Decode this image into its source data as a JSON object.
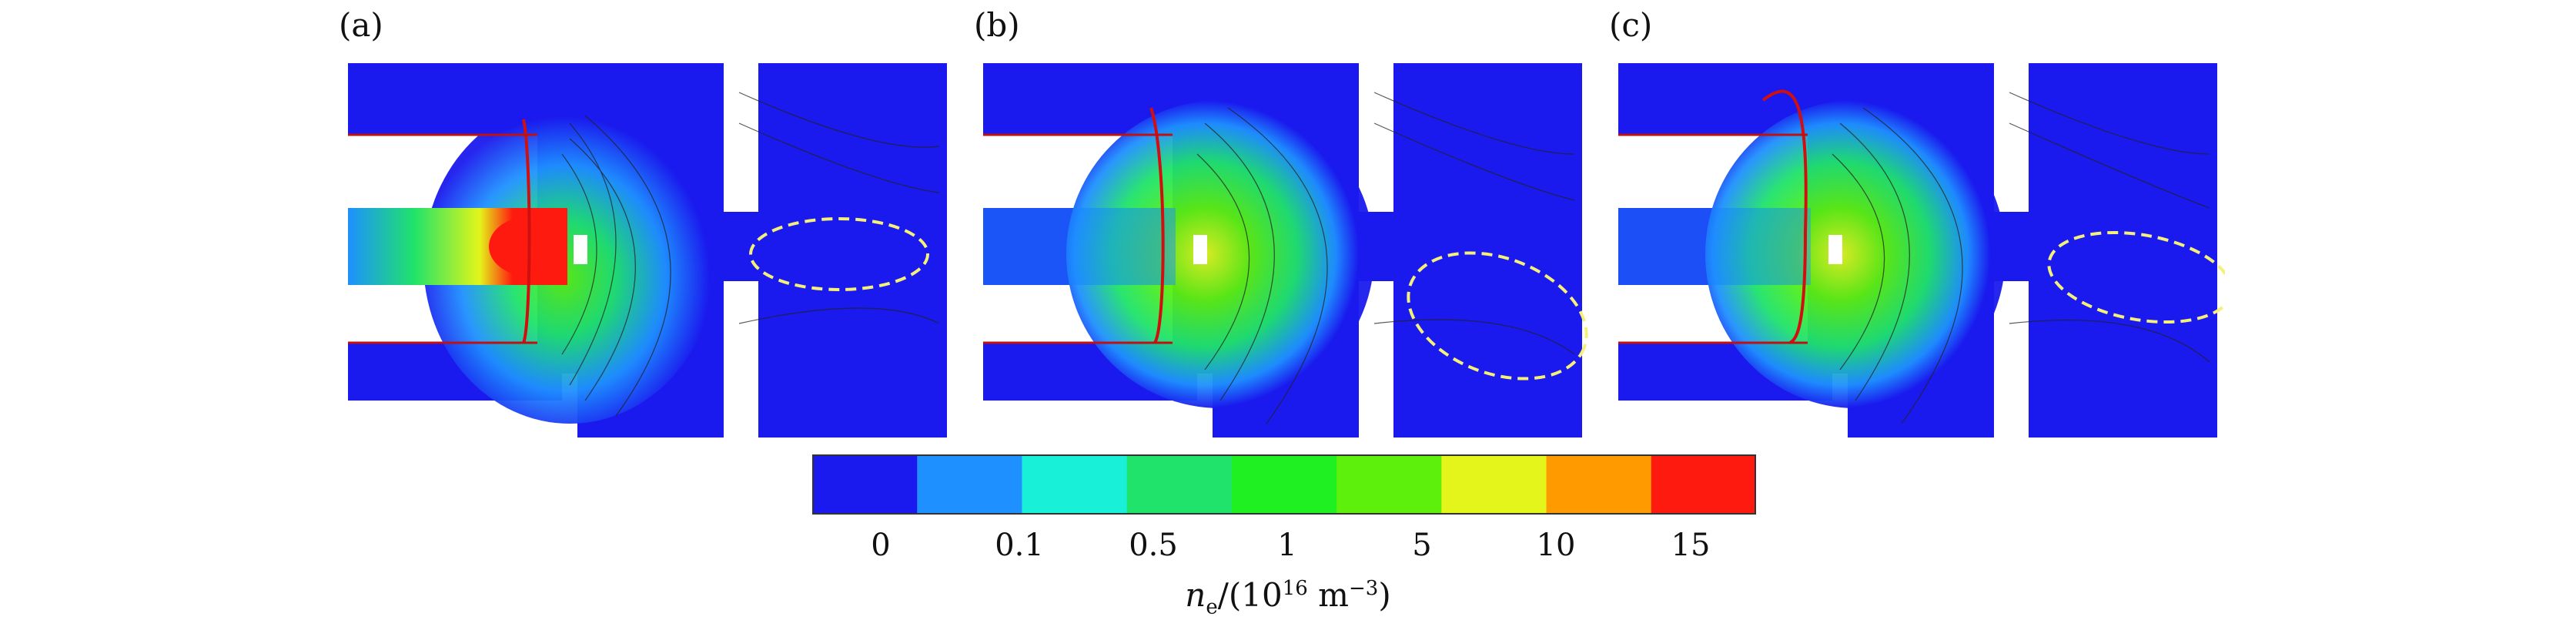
{
  "panels": [
    {
      "label": "(a)"
    },
    {
      "label": "(b)"
    },
    {
      "label": "(c)"
    }
  ],
  "colorbar": {
    "colors": [
      "#1a1aee",
      "#1e90ff",
      "#19f0d8",
      "#1fe36a",
      "#1ef022",
      "#5cf00c",
      "#e3f51a",
      "#ff9a00",
      "#ff1a10"
    ],
    "tick_labels": [
      "0",
      "0.1",
      "0.5",
      "1",
      "5",
      "10",
      "15"
    ],
    "label_var": "n",
    "label_sub": "e",
    "label_mid": "/(10",
    "label_exp": "16",
    "label_unit": " m",
    "label_unit_exp": "−3",
    "label_end": ")"
  }
}
